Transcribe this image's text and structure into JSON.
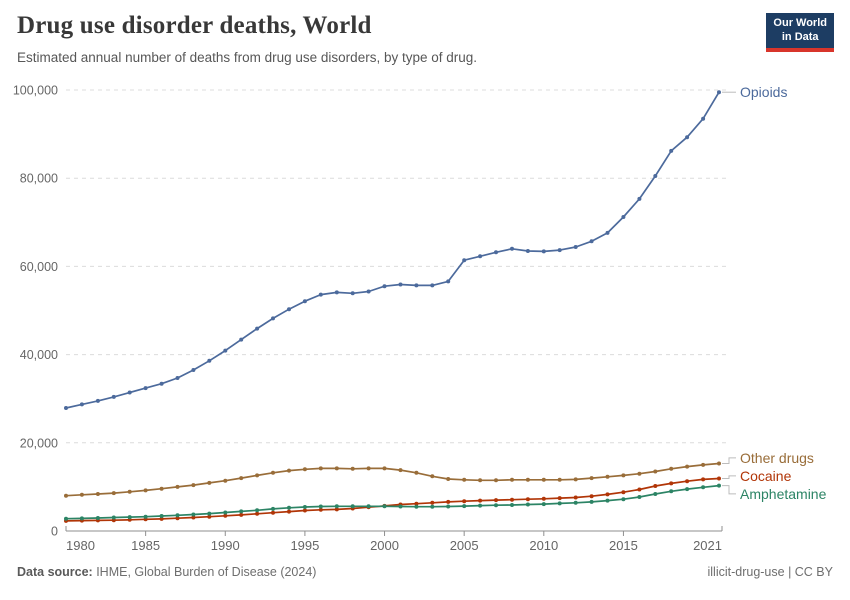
{
  "header": {
    "title": "Drug use disorder deaths, World",
    "subtitle": "Estimated annual number of deaths from drug use disorders, by type of drug.",
    "logo": {
      "line1": "Our World",
      "line2": "in Data",
      "bg_color": "#1D3D63",
      "bar_color": "#D8352B"
    }
  },
  "footer": {
    "source_label": "Data source:",
    "source_text": " IHME, Global Burden of Disease (2024)",
    "license": "illicit-drug-use | CC BY"
  },
  "chart_data": {
    "type": "line",
    "title": "Drug use disorder deaths, World",
    "xlabel": "",
    "ylabel": "",
    "xlim": [
      1980,
      2021
    ],
    "ylim": [
      0,
      100000
    ],
    "xticks": [
      1980,
      1985,
      1990,
      1995,
      2000,
      2005,
      2010,
      2015,
      2021
    ],
    "yticks": [
      0,
      20000,
      40000,
      60000,
      80000,
      100000
    ],
    "grid": true,
    "legend_position": "right-end-labels",
    "x": [
      1980,
      1981,
      1982,
      1983,
      1984,
      1985,
      1986,
      1987,
      1988,
      1989,
      1990,
      1991,
      1992,
      1993,
      1994,
      1995,
      1996,
      1997,
      1998,
      1999,
      2000,
      2001,
      2002,
      2003,
      2004,
      2005,
      2006,
      2007,
      2008,
      2009,
      2010,
      2011,
      2012,
      2013,
      2014,
      2015,
      2016,
      2017,
      2018,
      2019,
      2020,
      2021
    ],
    "series": [
      {
        "name": "Opioids",
        "color": "#4C6A9C",
        "values": [
          27900,
          28700,
          29500,
          30400,
          31400,
          32400,
          33400,
          34700,
          36500,
          38600,
          40900,
          43400,
          45900,
          48200,
          50300,
          52100,
          53600,
          54100,
          53900,
          54300,
          55500,
          55900,
          55700,
          55700,
          56600,
          61400,
          62300,
          63200,
          64000,
          63500,
          63400,
          63700,
          64400,
          65700,
          67600,
          71200,
          75300,
          80500,
          86200,
          89300,
          93500,
          99500
        ]
      },
      {
        "name": "Other drugs",
        "color": "#996D39",
        "values": [
          8000,
          8200,
          8400,
          8600,
          8900,
          9200,
          9600,
          10000,
          10400,
          10900,
          11400,
          12000,
          12600,
          13200,
          13700,
          14000,
          14200,
          14200,
          14100,
          14200,
          14200,
          13800,
          13200,
          12400,
          11800,
          11600,
          11500,
          11500,
          11600,
          11600,
          11600,
          11600,
          11700,
          12000,
          12300,
          12600,
          13000,
          13500,
          14100,
          14600,
          15000,
          15300
        ]
      },
      {
        "name": "Cocaine",
        "color": "#B13507",
        "values": [
          2300,
          2350,
          2400,
          2450,
          2550,
          2650,
          2750,
          2900,
          3050,
          3250,
          3450,
          3650,
          3900,
          4150,
          4400,
          4650,
          4800,
          4900,
          5100,
          5400,
          5700,
          6000,
          6200,
          6400,
          6600,
          6750,
          6900,
          7000,
          7100,
          7200,
          7300,
          7450,
          7600,
          7900,
          8300,
          8800,
          9400,
          10200,
          10800,
          11300,
          11700,
          11900
        ]
      },
      {
        "name": "Amphetamine",
        "color": "#2C8465",
        "values": [
          2800,
          2850,
          2950,
          3050,
          3150,
          3250,
          3400,
          3550,
          3750,
          3950,
          4200,
          4450,
          4700,
          5000,
          5250,
          5450,
          5550,
          5600,
          5600,
          5600,
          5600,
          5550,
          5500,
          5500,
          5550,
          5650,
          5750,
          5850,
          5900,
          6000,
          6100,
          6250,
          6400,
          6600,
          6900,
          7200,
          7700,
          8400,
          9000,
          9500,
          9900,
          10300
        ]
      }
    ]
  }
}
